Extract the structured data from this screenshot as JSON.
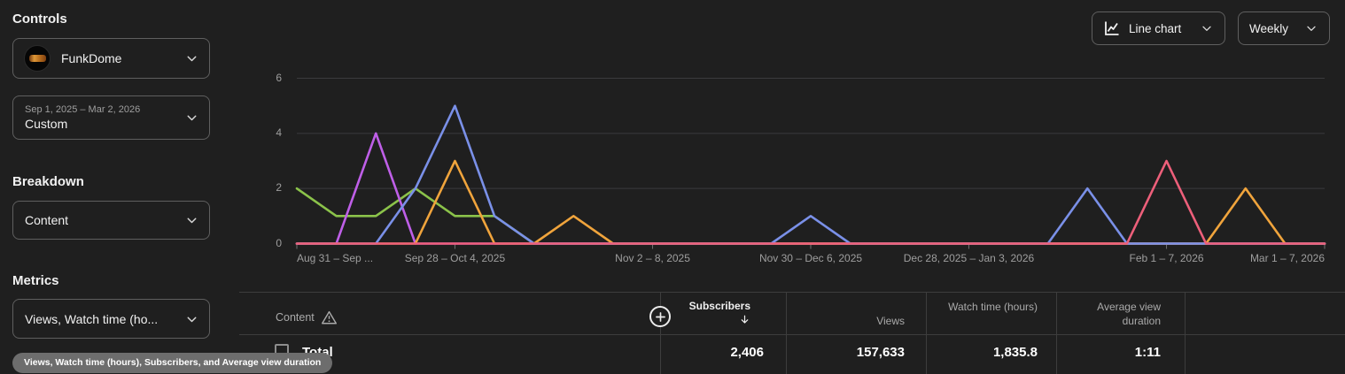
{
  "sidebar": {
    "controls_heading": "Controls",
    "channel": {
      "name": "FunkDome"
    },
    "date_range": {
      "range": "Sep 1, 2025 – Mar 2, 2026",
      "preset": "Custom"
    },
    "breakdown_heading": "Breakdown",
    "breakdown_value": "Content",
    "metrics_heading": "Metrics",
    "metrics_value": "Views, Watch time (ho...",
    "metrics_tooltip": "Views, Watch time (hours), Subscribers, and Average view duration"
  },
  "toolbar": {
    "chart_type": "Line chart",
    "interval": "Weekly"
  },
  "chart_data": {
    "type": "line",
    "x_unit": "week",
    "weeks": 27,
    "ylim": [
      0,
      6
    ],
    "yticks": [
      0,
      2,
      4,
      6
    ],
    "grid": true,
    "legend": "none",
    "x_tick_labels": [
      {
        "week": 0,
        "label": "Aug 31 – Sep ...",
        "align": "left"
      },
      {
        "week": 4,
        "label": "Sep 28 – Oct 4, 2025",
        "align": "center"
      },
      {
        "week": 9,
        "label": "Nov 2 – 8, 2025",
        "align": "center"
      },
      {
        "week": 13,
        "label": "Nov 30 – Dec 6, 2025",
        "align": "center"
      },
      {
        "week": 17,
        "label": "Dec 28, 2025 – Jan 3, 2026",
        "align": "center"
      },
      {
        "week": 22,
        "label": "Feb 1 – 7, 2026",
        "align": "center"
      },
      {
        "week": 26,
        "label": "Mar 1 – 7, 2026",
        "align": "right"
      }
    ],
    "series": [
      {
        "name": "content-green",
        "color": "#8bc34a",
        "values": [
          2,
          1,
          1,
          2,
          1,
          1,
          0,
          0,
          0,
          0,
          0,
          0,
          0,
          0,
          0,
          0,
          0,
          0,
          0,
          0,
          0,
          0,
          0,
          0,
          0,
          0,
          0
        ]
      },
      {
        "name": "content-purple",
        "color": "#bf5fe8",
        "values": [
          0,
          0,
          4,
          0,
          0,
          0,
          0,
          0,
          0,
          0,
          0,
          0,
          0,
          0,
          0,
          0,
          0,
          0,
          0,
          0,
          0,
          0,
          0,
          0,
          0,
          0,
          0
        ]
      },
      {
        "name": "content-orange",
        "color": "#f0a43c",
        "values": [
          0,
          0,
          0,
          0,
          3,
          0,
          0,
          1,
          0,
          0,
          0,
          0,
          0,
          0,
          0,
          0,
          0,
          0,
          0,
          0,
          0,
          0,
          0,
          0,
          2,
          0,
          0
        ]
      },
      {
        "name": "content-blue",
        "color": "#7a90e8",
        "values": [
          0,
          0,
          0,
          2,
          5,
          1,
          0,
          0,
          0,
          0,
          0,
          0,
          0,
          1,
          0,
          0,
          0,
          0,
          0,
          0,
          2,
          0,
          0,
          0,
          0,
          0,
          0
        ]
      },
      {
        "name": "content-pink",
        "color": "#ed5f7a",
        "values": [
          0,
          0,
          0,
          0,
          0,
          0,
          0,
          0,
          0,
          0,
          0,
          0,
          0,
          0,
          0,
          0,
          0,
          0,
          0,
          0,
          0,
          0,
          3,
          0,
          0,
          0,
          0
        ]
      }
    ]
  },
  "table": {
    "columns": [
      {
        "label": "Content"
      },
      {
        "label": "Subscribers",
        "sorted": "desc"
      },
      {
        "label": "Views"
      },
      {
        "label": "Watch time (hours)"
      },
      {
        "label": "Average view duration"
      }
    ],
    "total_row": {
      "label": "Total",
      "subscribers": "2,406",
      "views": "157,633",
      "watch_time_hours": "1,835.8",
      "average_view_duration": "1:11"
    }
  }
}
